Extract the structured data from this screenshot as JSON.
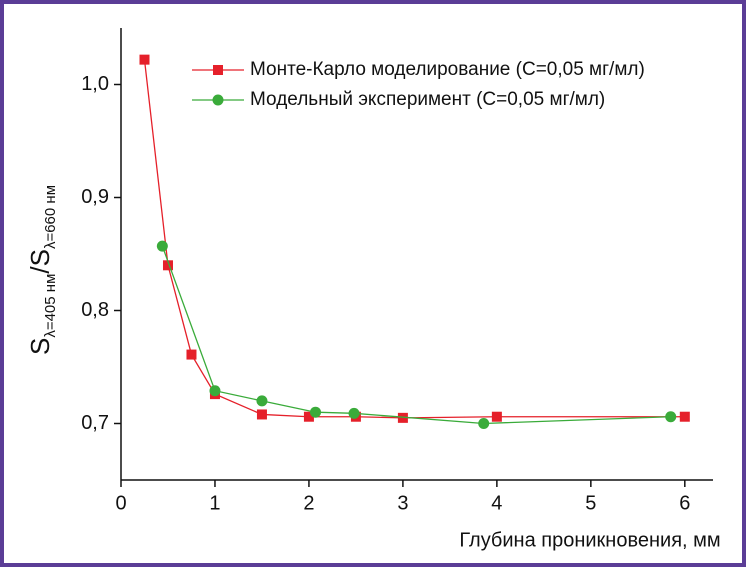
{
  "chart_data": {
    "type": "line",
    "y_label": {
      "s1": "S",
      "sub1": "λ=405 нм",
      "slash": "/",
      "s2": "S",
      "sub2": "λ=660 нм"
    },
    "x_label": "Глубина проникновения, мм",
    "xlim": [
      0,
      6.3
    ],
    "xticks": [
      0,
      1,
      2,
      3,
      4,
      5,
      6
    ],
    "ylim": [
      0.65,
      1.05
    ],
    "yticks": [
      {
        "value": 0.7,
        "label": "0,7"
      },
      {
        "value": 0.8,
        "label": "0,8"
      },
      {
        "value": 0.9,
        "label": "0,9"
      },
      {
        "value": 1.0,
        "label": "1,0"
      }
    ],
    "legend": "top",
    "series": [
      {
        "name": "Монте-Карло моделирование (С=0,05 мг/мл)",
        "color": "#e5202a",
        "marker": "square",
        "x": [
          0.25,
          0.5,
          0.75,
          1.0,
          1.5,
          2.0,
          2.5,
          3.0,
          4.0,
          6.0
        ],
        "values": [
          1.022,
          0.84,
          0.761,
          0.726,
          0.708,
          0.706,
          0.706,
          0.705,
          0.706,
          0.706
        ]
      },
      {
        "name": "Модельный  эксперимент (С=0,05 мг/мл)",
        "color": "#3aab3a",
        "marker": "circle",
        "x": [
          0.44,
          1.0,
          1.5,
          2.07,
          2.48,
          3.86,
          5.85
        ],
        "values": [
          0.857,
          0.729,
          0.72,
          0.71,
          0.709,
          0.7,
          0.706
        ]
      }
    ]
  }
}
